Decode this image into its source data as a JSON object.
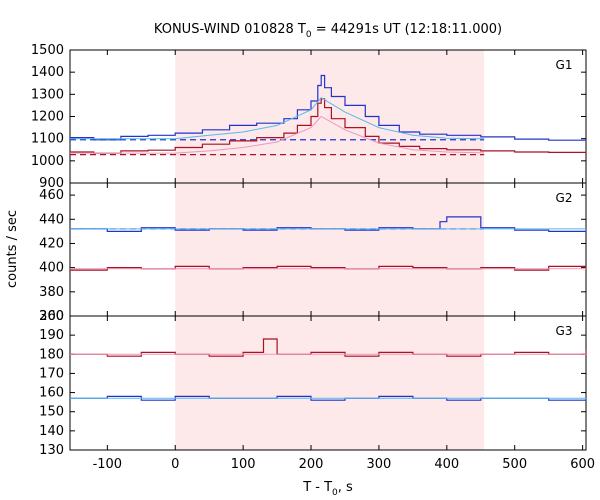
{
  "chart_data": {
    "type": "line",
    "title_main": "KONUS-WIND 010828 T",
    "title_sub": "0",
    "title_rest": " = 44291s UT (12:18:11.000)",
    "xlabel_main": "T - T",
    "xlabel_sub": "0",
    "xlabel_rest": ", s",
    "ylabel": "counts / sec",
    "xlim": [
      -155,
      605
    ],
    "x_ticks": [
      -100,
      0,
      100,
      200,
      300,
      400,
      500,
      600
    ],
    "grid": false,
    "interval_highlight": {
      "from": 0,
      "to": 455,
      "color": "#fde8ea"
    },
    "colors": {
      "blue": "#2233cc",
      "red": "#aa1122",
      "fit_blue": "#55bbee",
      "fit_red": "#ee99bb"
    },
    "panels": [
      {
        "label": "G1",
        "ylim": [
          900,
          1500
        ],
        "yticks": [
          900,
          1000,
          1100,
          1200,
          1300,
          1400,
          1500
        ],
        "series": [
          {
            "color_key": "blue",
            "x": [
              -155,
              -120,
              -80,
              -40,
              0,
              40,
              80,
              120,
              160,
              180,
              200,
              210,
              215,
              220,
              230,
              250,
              280,
              300,
              330,
              360,
              400,
              450,
              500,
              550,
              605
            ],
            "y": [
              1105,
              1095,
              1110,
              1115,
              1125,
              1140,
              1160,
              1170,
              1190,
              1230,
              1270,
              1340,
              1385,
              1330,
              1290,
              1250,
              1200,
              1160,
              1130,
              1120,
              1115,
              1108,
              1098,
              1093,
              1090
            ]
          },
          {
            "color_key": "red",
            "x": [
              -155,
              -120,
              -80,
              -40,
              0,
              40,
              80,
              120,
              160,
              180,
              200,
              210,
              215,
              220,
              230,
              250,
              280,
              300,
              330,
              360,
              400,
              450,
              500,
              550,
              605
            ],
            "y": [
              1040,
              1035,
              1045,
              1048,
              1060,
              1075,
              1090,
              1105,
              1125,
              1160,
              1200,
              1260,
              1280,
              1240,
              1190,
              1150,
              1110,
              1080,
              1065,
              1055,
              1050,
              1045,
              1040,
              1038,
              1036
            ]
          },
          {
            "color_key": "fit_blue",
            "x": [
              -155,
              -100,
              -50,
              0,
              50,
              100,
              150,
              200,
              215,
              250,
              300,
              350,
              400,
              455
            ],
            "y": [
              1100,
              1100,
              1100,
              1100,
              1115,
              1130,
              1160,
              1230,
              1285,
              1220,
              1150,
              1115,
              1102,
              1100
            ]
          },
          {
            "color_key": "fit_red",
            "x": [
              -155,
              -100,
              -50,
              0,
              50,
              100,
              150,
              200,
              215,
              250,
              300,
              350,
              400,
              455
            ],
            "y": [
              1035,
              1035,
              1035,
              1035,
              1045,
              1060,
              1085,
              1150,
              1200,
              1140,
              1080,
              1050,
              1040,
              1036
            ]
          }
        ],
        "background_lines": [
          {
            "color_key": "blue",
            "from": -155,
            "to": 455,
            "value": 1095
          },
          {
            "color_key": "red",
            "from": -155,
            "to": 455,
            "value": 1028
          }
        ]
      },
      {
        "label": "G2",
        "ylim": [
          360,
          470
        ],
        "yticks": [
          360,
          380,
          400,
          420,
          440,
          460
        ],
        "series": [
          {
            "color_key": "blue",
            "x": [
              -155,
              -100,
              -50,
              0,
              50,
              100,
              150,
              200,
              250,
              300,
              350,
              390,
              400,
              450,
              500,
              550,
              605
            ],
            "y": [
              432,
              430,
              433,
              431,
              432,
              431,
              433,
              432,
              431,
              433,
              432,
              438,
              442,
              433,
              431,
              430,
              431
            ]
          },
          {
            "color_key": "red",
            "x": [
              -155,
              -100,
              -50,
              0,
              50,
              100,
              150,
              200,
              250,
              300,
              350,
              400,
              450,
              500,
              550,
              605
            ],
            "y": [
              398,
              400,
              399,
              401,
              399,
              400,
              401,
              400,
              399,
              401,
              400,
              399,
              400,
              398,
              401,
              399
            ]
          },
          {
            "color_key": "fit_blue",
            "x": [
              -155,
              605
            ],
            "y": [
              432,
              432
            ]
          },
          {
            "color_key": "fit_red",
            "x": [
              -155,
              605
            ],
            "y": [
              399,
              399
            ]
          }
        ],
        "background_lines": [
          {
            "color_key": "blue",
            "from": -155,
            "to": 455,
            "value": 432
          }
        ]
      },
      {
        "label": "G3",
        "ylim": [
          130,
          200
        ],
        "yticks": [
          130,
          140,
          150,
          160,
          170,
          180,
          190,
          200
        ],
        "series": [
          {
            "color_key": "red",
            "x": [
              -155,
              -100,
              -50,
              0,
              50,
              100,
              130,
              150,
              200,
              250,
              300,
              350,
              400,
              450,
              500,
              550,
              605
            ],
            "y": [
              180,
              179,
              181,
              180,
              179,
              181,
              188,
              180,
              181,
              179,
              181,
              180,
              179,
              180,
              181,
              180,
              182
            ]
          },
          {
            "color_key": "blue",
            "x": [
              -155,
              -100,
              -50,
              0,
              50,
              100,
              150,
              200,
              250,
              300,
              350,
              400,
              450,
              500,
              550,
              605
            ],
            "y": [
              157,
              158,
              156,
              158,
              157,
              157,
              158,
              156,
              157,
              158,
              157,
              156,
              157,
              157,
              156,
              157
            ]
          },
          {
            "color_key": "fit_red",
            "x": [
              -155,
              605
            ],
            "y": [
              180,
              180
            ]
          },
          {
            "color_key": "fit_blue",
            "x": [
              -155,
              605
            ],
            "y": [
              157,
              157
            ]
          }
        ],
        "background_lines": []
      }
    ]
  }
}
